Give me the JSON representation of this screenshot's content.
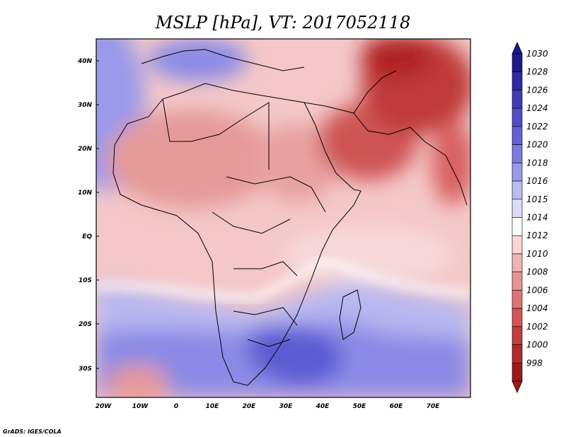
{
  "title": "MSLP [hPa], VT: 2017052118",
  "footer": "GrADS: IGES/COLA",
  "lat_labels": [
    "40N",
    "30N",
    "20N",
    "10N",
    "EQ",
    "10S",
    "20S",
    "30S"
  ],
  "lon_labels": [
    "20W",
    "10W",
    "0",
    "10E",
    "20E",
    "30E",
    "40E",
    "50E",
    "60E",
    "70E"
  ],
  "colorbar": {
    "levels": [
      "1030",
      "1028",
      "1026",
      "1024",
      "1022",
      "1020",
      "1018",
      "1016",
      "1015",
      "1014",
      "1012",
      "1010",
      "1008",
      "1006",
      "1004",
      "1002",
      "1000",
      "998"
    ],
    "colors": [
      "#1a1a8c",
      "#2b2ba6",
      "#3c3cb9",
      "#4f4fc9",
      "#6262d6",
      "#7a7ae0",
      "#9a9aea",
      "#bcbcf2",
      "#dcdcf8",
      "#ffffff",
      "#f8d6d6",
      "#f2b3b3",
      "#e89393",
      "#df7373",
      "#d55454",
      "#c63c3c",
      "#b52a2a",
      "#9e1a1a"
    ]
  },
  "theme": {
    "ocean_blue": "#8a8ae6",
    "deep_blue": "#4545c4",
    "pale_red": "#f3c4c4",
    "mid_red": "#e58f8f",
    "deep_red": "#b02121",
    "coast": "#000000"
  }
}
